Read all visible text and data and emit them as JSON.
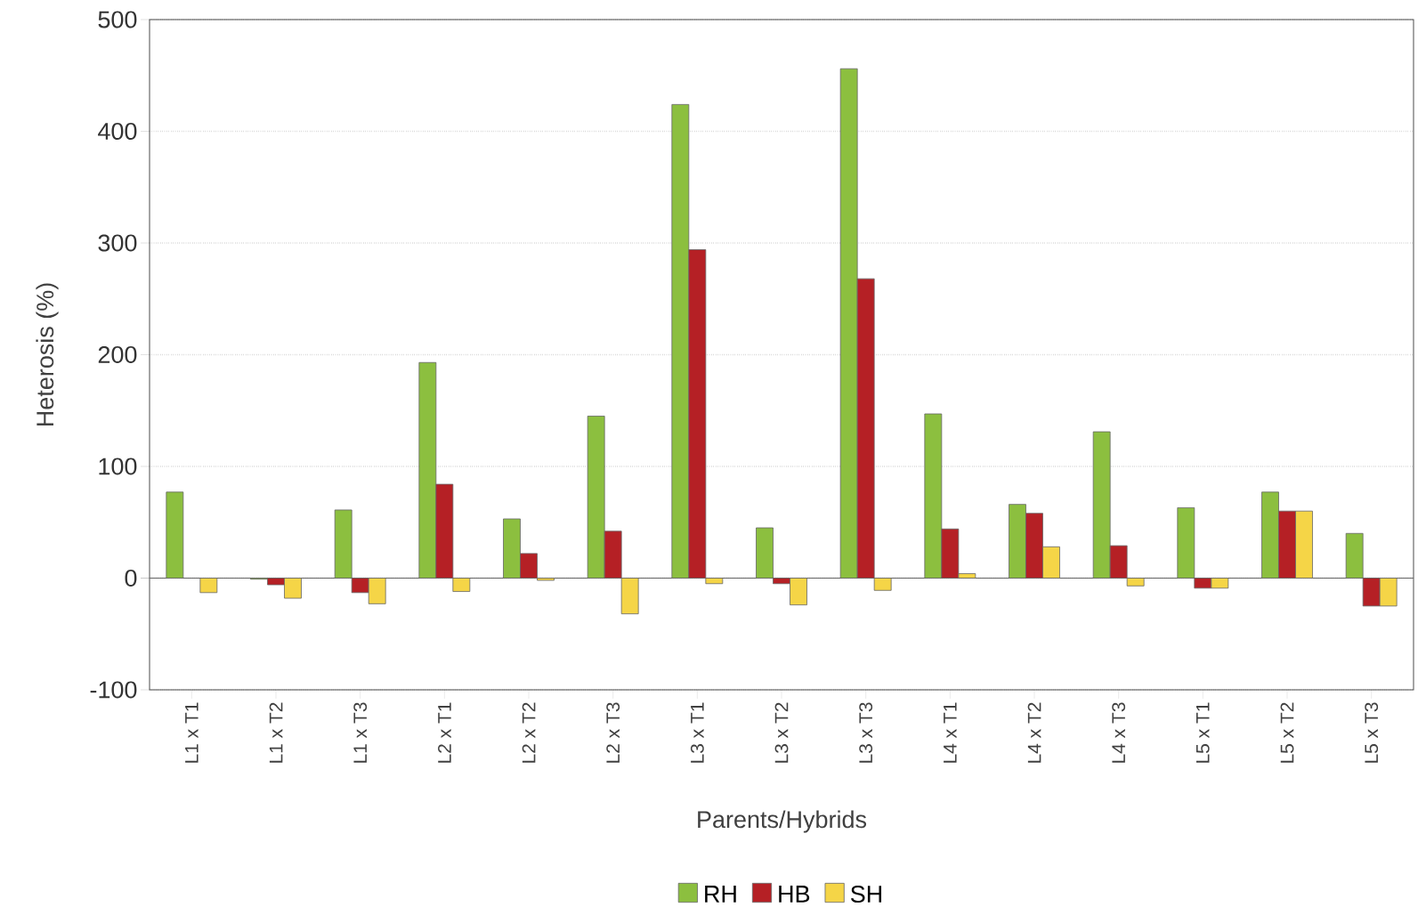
{
  "chart_data": {
    "type": "bar",
    "xlabel": "Parents/Hybrids",
    "ylabel": "Heterosis (%)",
    "categories": [
      "L1 x T1",
      "L1 x T2",
      "L1 x T3",
      "L2 x T1",
      "L2 x T2",
      "L2 x T3",
      "L3 x T1",
      "L3 x T2",
      "L3 x T3",
      "L4 x T1",
      "L4 x T2",
      "L4 x T3",
      "L5 x T1",
      "L5 x T2",
      "L5 x T3"
    ],
    "series": [
      {
        "name": "RH",
        "color": "#8cbf3f",
        "values": [
          77,
          -1,
          61,
          193,
          53,
          145,
          424,
          45,
          456,
          147,
          66,
          131,
          63,
          77,
          40
        ]
      },
      {
        "name": "HB",
        "color": "#b52025",
        "values": [
          null,
          -6,
          -13,
          84,
          22,
          42,
          294,
          -5,
          268,
          44,
          58,
          29,
          -9,
          60,
          -25
        ]
      },
      {
        "name": "SH",
        "color": "#f5d547",
        "values": [
          -13,
          -18,
          -23,
          -12,
          -2,
          -32,
          -5,
          -24,
          -11,
          4,
          28,
          -7,
          -9,
          60,
          -25
        ]
      }
    ],
    "ylim": [
      -100,
      500
    ],
    "yticks": [
      -100,
      0,
      100,
      200,
      300,
      400,
      500
    ],
    "grid": "y",
    "legend": "bottom"
  }
}
